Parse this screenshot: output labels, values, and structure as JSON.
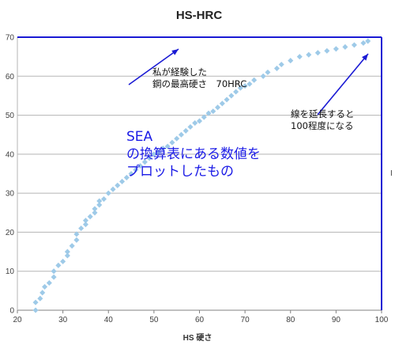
{
  "chart_data": {
    "type": "scatter",
    "title": "HS-HRC",
    "xlabel": "HS 硬さ",
    "ylabel": "",
    "xlim": [
      20,
      100
    ],
    "ylim": [
      0,
      70
    ],
    "xticks": [
      "20",
      "30",
      "40",
      "50",
      "60",
      "70",
      "80",
      "90",
      "100"
    ],
    "yticks": [
      "0",
      "10",
      "20",
      "30",
      "40",
      "50",
      "60",
      "70"
    ],
    "grid": "horizontal",
    "point_color": "#9ecae8",
    "series": [
      {
        "points": [
          [
            24,
            0
          ],
          [
            24,
            2
          ],
          [
            25,
            3
          ],
          [
            25.5,
            4.5
          ],
          [
            26,
            6
          ],
          [
            27,
            7
          ],
          [
            28,
            8.5
          ],
          [
            28,
            10
          ],
          [
            29,
            11.5
          ],
          [
            30,
            12.5
          ],
          [
            31,
            14
          ],
          [
            31,
            15
          ],
          [
            32,
            16.5
          ],
          [
            33,
            18
          ],
          [
            33,
            19.5
          ],
          [
            34,
            21
          ],
          [
            35,
            22
          ],
          [
            35,
            23
          ],
          [
            36,
            24
          ],
          [
            37,
            25
          ],
          [
            37,
            26
          ],
          [
            38,
            27
          ],
          [
            38,
            28
          ],
          [
            39,
            28.5
          ],
          [
            40,
            30
          ],
          [
            41,
            31
          ],
          [
            42,
            32
          ],
          [
            43,
            33
          ],
          [
            44,
            34
          ],
          [
            45,
            35
          ],
          [
            46,
            36
          ],
          [
            47,
            37
          ],
          [
            48,
            38
          ],
          [
            49,
            39
          ],
          [
            50,
            40
          ],
          [
            51,
            40.5
          ],
          [
            52,
            41.5
          ],
          [
            53,
            42
          ],
          [
            54,
            43
          ],
          [
            55,
            44
          ],
          [
            56,
            45
          ],
          [
            57,
            46
          ],
          [
            58,
            47
          ],
          [
            59,
            48
          ],
          [
            60,
            48.5
          ],
          [
            61,
            49.5
          ],
          [
            62,
            50.5
          ],
          [
            63,
            51
          ],
          [
            64,
            52
          ],
          [
            65,
            53
          ],
          [
            66,
            54
          ],
          [
            67,
            55
          ],
          [
            68,
            56
          ],
          [
            69,
            57
          ],
          [
            70,
            57.5
          ],
          [
            71,
            58
          ],
          [
            72,
            59
          ],
          [
            74,
            60
          ],
          [
            75,
            61
          ],
          [
            77,
            62
          ],
          [
            78,
            63
          ],
          [
            80,
            64
          ],
          [
            82,
            65
          ],
          [
            84,
            65.5
          ],
          [
            86,
            66
          ],
          [
            88,
            66.5
          ],
          [
            90,
            67
          ],
          [
            92,
            67.5
          ],
          [
            94,
            68
          ],
          [
            96,
            68.5
          ],
          [
            97,
            69
          ]
        ]
      }
    ],
    "annotations": {
      "top_line1": "私が経験した",
      "top_line2": "鋼の最高硬さ　70HRC",
      "right_line1": "線を延長すると",
      "right_line2": "100程度になる",
      "sea_line1": "SEA",
      "sea_line2": "の換算表にある数値を",
      "sea_line3": "プロットしたもの"
    },
    "reference_lines": {
      "max_hardness_y": 70,
      "extension_x": 100,
      "color": "#1a1ad4"
    },
    "side_mark": "I"
  }
}
